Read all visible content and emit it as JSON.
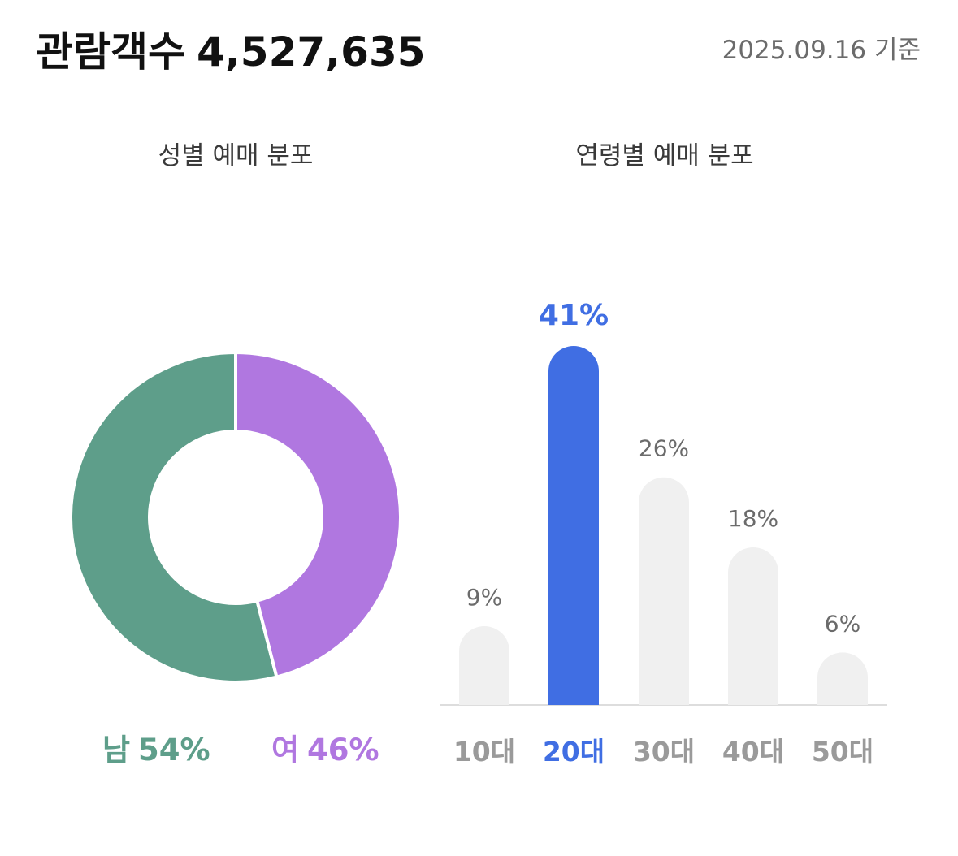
{
  "header": {
    "title": "관람객수",
    "count": "4,527,635",
    "date": "2025.09.16 기준"
  },
  "colors": {
    "male": "#5e9e8a",
    "female": "#b077e0",
    "highlight": "#406ee3",
    "bar_default": "#f0f0f0",
    "label_default": "#6b6b6b",
    "category_default": "#9a9a9a",
    "baseline": "#dddddd"
  },
  "gender": {
    "title": "성별 예매 분포",
    "male_label": "남",
    "male_pct": "54%",
    "female_label": "여",
    "female_pct": "46%"
  },
  "age": {
    "title": "연령별 예매 분포"
  },
  "chart_data": [
    {
      "type": "pie",
      "title": "성별 예매 분포",
      "categories": [
        "남",
        "여"
      ],
      "values": [
        54,
        46
      ],
      "colors": [
        "#5e9e8a",
        "#b077e0"
      ],
      "donut": true
    },
    {
      "type": "bar",
      "title": "연령별 예매 분포",
      "categories": [
        "10대",
        "20대",
        "30대",
        "40대",
        "50대"
      ],
      "values": [
        9,
        41,
        26,
        18,
        6
      ],
      "labels": [
        "9%",
        "41%",
        "26%",
        "18%",
        "6%"
      ],
      "highlight_index": 1,
      "ylim": [
        0,
        41
      ]
    }
  ]
}
